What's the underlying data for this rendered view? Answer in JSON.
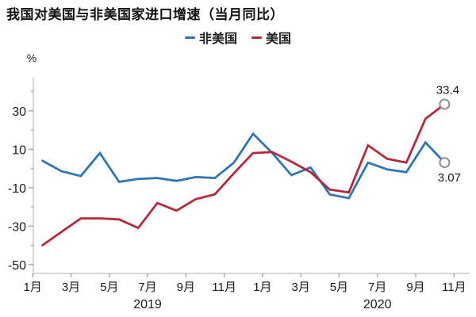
{
  "title": "我国对美国与非美国家进口增速（当月同比）",
  "legend": [
    {
      "label": "非美国",
      "color": "#2e75b6"
    },
    {
      "label": "美国",
      "color": "#b5293a"
    }
  ],
  "y_axis": {
    "unit": "%",
    "major_ticks": [
      30,
      10,
      -10,
      -30,
      -50
    ],
    "minor_ticks": [
      40,
      20,
      0,
      -20,
      -40
    ],
    "range": [
      -55,
      46
    ]
  },
  "x_axis": {
    "tick_labels": [
      "1月",
      "3月",
      "5月",
      "7月",
      "9月",
      "11月",
      "1月",
      "3月",
      "5月",
      "7月",
      "9月",
      "11月"
    ],
    "year_labels": [
      "2019",
      "2020"
    ]
  },
  "annotations": {
    "us_end_label": "33.4",
    "non_us_end_label": "3.07"
  },
  "colors": {
    "axis": "#c9c9c9",
    "tick": "#9a9a9a",
    "tick_text": "#1a1a1a",
    "end_marker_stroke": "#8f8f8f"
  },
  "chart_data": {
    "type": "line",
    "x": [
      "2019-01",
      "2019-02",
      "2019-03",
      "2019-04",
      "2019-05",
      "2019-06",
      "2019-07",
      "2019-08",
      "2019-09",
      "2019-10",
      "2019-11",
      "2019-12",
      "2020-01",
      "2020-02",
      "2020-03",
      "2020-04",
      "2020-05",
      "2020-06",
      "2020-07",
      "2020-08",
      "2020-09",
      "2020-10"
    ],
    "series": [
      {
        "name": "非美国",
        "color": "#2e75b6",
        "values": [
          4,
          -1.5,
          -4,
          8,
          -7,
          -5.5,
          -5,
          -6.5,
          -4.5,
          -5,
          3,
          18,
          8,
          -3.5,
          0.5,
          -13.5,
          -15.5,
          3,
          -0.5,
          -2,
          13.5,
          3.07
        ]
      },
      {
        "name": "美国",
        "color": "#b5293a",
        "values": [
          -40,
          -33,
          -26,
          -26,
          -26.5,
          -31,
          -18,
          -22,
          -16,
          -13.5,
          -2.5,
          8,
          8.5,
          3.5,
          -2,
          -11,
          -12.5,
          12,
          5,
          3,
          25.8,
          33.4
        ]
      }
    ],
    "title": "我国对美国与非美国家进口增速（当月同比）",
    "xlabel": "",
    "ylabel": "%",
    "ylim": [
      -55,
      46
    ],
    "grid": false,
    "legend_position": "top",
    "end_markers": true,
    "end_labels": [
      "3.07",
      "33.4"
    ]
  }
}
